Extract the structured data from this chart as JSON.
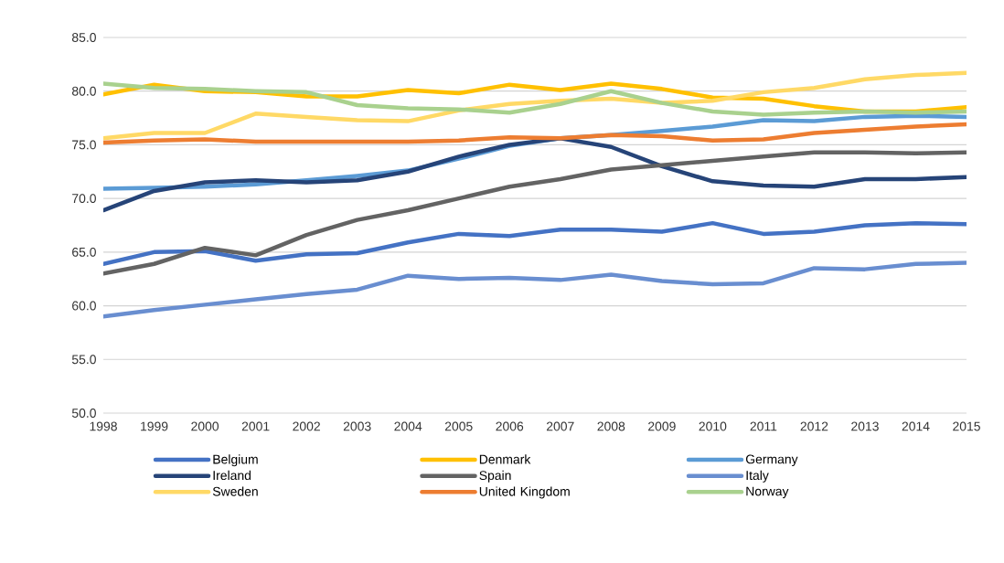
{
  "chart_data": {
    "type": "line",
    "x": [
      1998,
      1999,
      2000,
      2001,
      2002,
      2003,
      2004,
      2005,
      2006,
      2007,
      2008,
      2009,
      2010,
      2011,
      2012,
      2013,
      2014,
      2015
    ],
    "ylim": [
      50,
      85
    ],
    "yticks": [
      {
        "value": 50,
        "label": "50.0"
      },
      {
        "value": 55,
        "label": "55.0"
      },
      {
        "value": 60,
        "label": "60.0"
      },
      {
        "value": 65,
        "label": "65.0"
      },
      {
        "value": 70,
        "label": "70.0"
      },
      {
        "value": 75,
        "label": "75.0"
      },
      {
        "value": 80,
        "label": "80.0"
      },
      {
        "value": 85,
        "label": "85.0"
      }
    ],
    "xlim": [
      1998,
      2015
    ],
    "xticks": [
      1998,
      1999,
      2000,
      2001,
      2002,
      2003,
      2004,
      2005,
      2006,
      2007,
      2008,
      2009,
      2010,
      2011,
      2012,
      2013,
      2014,
      2015
    ],
    "grid": "y",
    "legend": "bottom",
    "marker": "none",
    "line_style": "solid",
    "series": [
      {
        "name": "Belgium",
        "color": "#4472c4",
        "values": [
          63.9,
          65.0,
          65.1,
          64.2,
          64.8,
          64.9,
          65.9,
          66.7,
          66.5,
          67.1,
          67.1,
          66.9,
          67.7,
          66.7,
          66.9,
          67.5,
          67.7,
          67.6
        ]
      },
      {
        "name": "Denmark",
        "color": "#ffc000",
        "values": [
          79.7,
          80.6,
          80.0,
          79.9,
          79.5,
          79.5,
          80.1,
          79.8,
          80.6,
          80.1,
          80.7,
          80.2,
          79.4,
          79.3,
          78.6,
          78.1,
          78.1,
          78.5
        ]
      },
      {
        "name": "Germany",
        "color": "#5b9bd5",
        "values": [
          70.9,
          71.0,
          71.1,
          71.3,
          71.7,
          72.1,
          72.6,
          73.7,
          74.9,
          75.6,
          75.9,
          76.3,
          76.7,
          77.3,
          77.2,
          77.6,
          77.7,
          77.6
        ]
      },
      {
        "name": "Ireland",
        "color": "#264478",
        "values": [
          68.9,
          70.7,
          71.5,
          71.7,
          71.5,
          71.7,
          72.5,
          73.9,
          75.0,
          75.6,
          74.8,
          73.0,
          71.6,
          71.2,
          71.1,
          71.8,
          71.8,
          72.0
        ]
      },
      {
        "name": "Spain",
        "color": "#636363",
        "values": [
          63.0,
          63.9,
          65.4,
          64.7,
          66.6,
          68.0,
          68.9,
          70.0,
          71.1,
          71.8,
          72.7,
          73.1,
          73.5,
          73.9,
          74.3,
          74.3,
          74.2,
          74.3
        ]
      },
      {
        "name": "Italy",
        "color": "#698ed0",
        "values": [
          59.0,
          59.6,
          60.1,
          60.6,
          61.1,
          61.5,
          62.8,
          62.5,
          62.6,
          62.4,
          62.9,
          62.3,
          62.0,
          62.1,
          63.5,
          63.4,
          63.9,
          64.0
        ]
      },
      {
        "name": "Sweden",
        "color": "#ffd966",
        "values": [
          75.6,
          76.1,
          76.1,
          77.9,
          77.6,
          77.3,
          77.2,
          78.2,
          78.8,
          79.1,
          79.3,
          78.9,
          79.1,
          79.9,
          80.3,
          81.1,
          81.5,
          81.7
        ]
      },
      {
        "name": "United Kingdom",
        "color": "#ed7d31",
        "values": [
          75.2,
          75.4,
          75.5,
          75.3,
          75.3,
          75.3,
          75.3,
          75.4,
          75.7,
          75.6,
          75.9,
          75.8,
          75.4,
          75.5,
          76.1,
          76.4,
          76.7,
          76.9
        ]
      },
      {
        "name": "Norway",
        "color": "#a9d18e",
        "values": [
          80.7,
          80.3,
          80.2,
          80.0,
          79.9,
          78.7,
          78.4,
          78.3,
          78.0,
          78.8,
          80.0,
          78.9,
          78.1,
          77.8,
          78.0,
          78.1,
          78.0,
          78.1
        ]
      }
    ]
  }
}
